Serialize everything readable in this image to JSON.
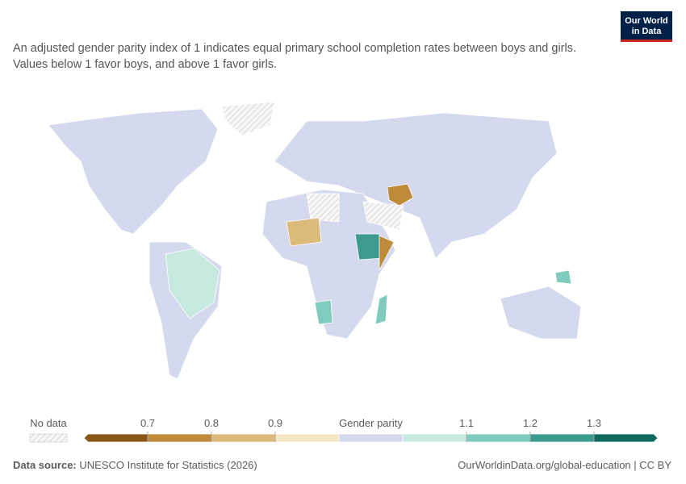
{
  "header": {
    "logo": "Our World in Data",
    "subtitle": "An adjusted gender parity index of 1 indicates equal primary school completion rates between boys and girls. Values below 1 favor boys, and above 1 favor girls."
  },
  "legend": {
    "no_data_label": "No data",
    "segments": [
      {
        "color": "#8b5719"
      },
      {
        "color": "#c08a3b",
        "start_label": "0.7"
      },
      {
        "color": "#dcbb7a",
        "start_label": "0.8"
      },
      {
        "color": "#f3e6c0",
        "start_label": "0.9"
      },
      {
        "color": "#d5d9ee",
        "label": "Gender parity"
      },
      {
        "color": "#c7e9e0"
      },
      {
        "color": "#7fcbbd",
        "start_label": "1.1"
      },
      {
        "color": "#3d9a8f",
        "start_label": "1.2"
      },
      {
        "color": "#0e6a5e",
        "start_label": "1.3"
      }
    ]
  },
  "footer": {
    "source_label": "Data source:",
    "source": "UNESCO Institute for Statistics (2026)",
    "link": "OurWorldinData.org/global-education | CC BY"
  }
}
